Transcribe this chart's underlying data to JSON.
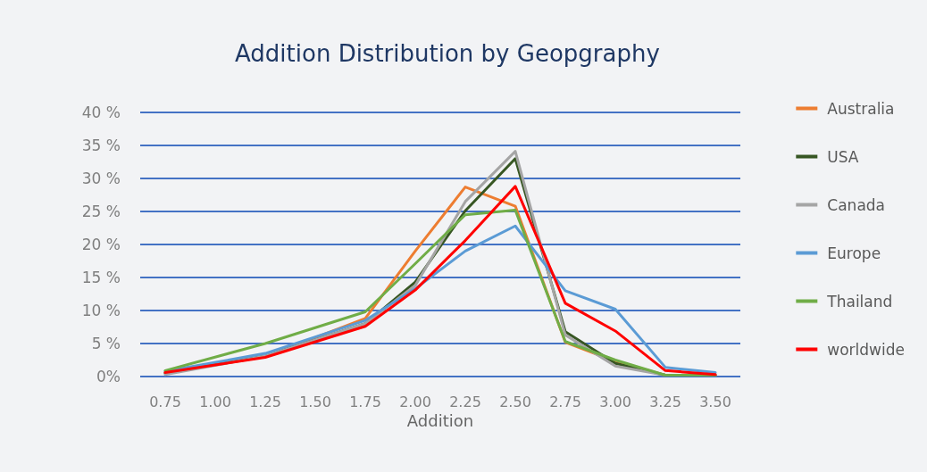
{
  "chart_data": {
    "type": "line",
    "title": "Addition Distribution by Geopgraphy",
    "xlabel": "Addition",
    "categories": [
      "0.75",
      "1.00",
      "1.25",
      "1.50",
      "1.75",
      "2.00",
      "2.25",
      "2.50",
      "2.75",
      "3.00",
      "3.25",
      "3.50"
    ],
    "series": [
      {
        "name": "Australia",
        "color": "#ed7d31",
        "values": [
          0.6,
          null,
          3.0,
          null,
          8.8,
          19.0,
          28.7,
          25.8,
          5.2,
          2.3,
          0.2,
          0.2
        ]
      },
      {
        "name": "USA",
        "color": "#375623",
        "values": [
          0.5,
          null,
          3.1,
          null,
          8.0,
          14.3,
          25.1,
          33.0,
          6.8,
          2.0,
          0.2,
          0.2
        ]
      },
      {
        "name": "Canada",
        "color": "#a5a5a5",
        "values": [
          0.3,
          null,
          3.1,
          null,
          8.0,
          13.8,
          26.5,
          34.1,
          6.3,
          1.6,
          0.2,
          0.2
        ]
      },
      {
        "name": "Europe",
        "color": "#5b9bd5",
        "values": [
          0.8,
          null,
          3.5,
          null,
          8.5,
          13.3,
          19.0,
          22.8,
          13.0,
          10.2,
          1.4,
          0.6
        ]
      },
      {
        "name": "Thailand",
        "color": "#70ad47",
        "values": [
          0.9,
          null,
          5.0,
          null,
          9.8,
          17.1,
          24.5,
          25.2,
          5.3,
          2.5,
          0.2,
          0.2
        ]
      },
      {
        "name": "worldwide",
        "color": "#ff0000",
        "values": [
          0.6,
          null,
          2.9,
          null,
          7.6,
          13.1,
          20.6,
          28.8,
          11.1,
          6.9,
          0.9,
          0.3
        ]
      }
    ],
    "ylim": [
      0,
      40
    ],
    "yticks": [
      {
        "value": 0,
        "label": "0%"
      },
      {
        "value": 5,
        "label": "5 %"
      },
      {
        "value": 10,
        "label": "10 %"
      },
      {
        "value": 15,
        "label": "15 %"
      },
      {
        "value": 20,
        "label": "20 %"
      },
      {
        "value": 25,
        "label": "25 %"
      },
      {
        "value": 30,
        "label": "30 %"
      },
      {
        "value": 35,
        "label": "35 %"
      },
      {
        "value": 40,
        "label": "40 %"
      }
    ],
    "grid": "y",
    "legend": "right",
    "marker": "none",
    "line_style": "solid"
  }
}
